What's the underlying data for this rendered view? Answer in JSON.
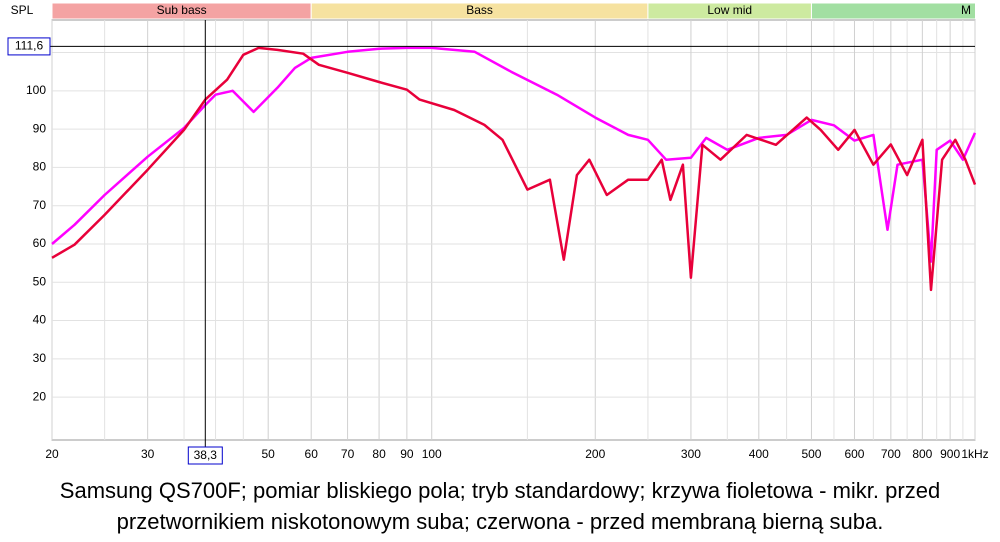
{
  "chart_data": {
    "type": "line",
    "y_label": "SPL",
    "caption": [
      "Samsung QS700F; pomiar bliskiego pola; tryb standardowy; krzywa fioletowa - mikr. przed",
      "przetwornikiem niskotonowym suba; czerwona - przed membraną bierną suba."
    ],
    "x_log": true,
    "xlim": [
      20,
      1000
    ],
    "ylim": [
      8.8,
      118.5
    ],
    "xticks": [
      20,
      30,
      50,
      60,
      70,
      80,
      90,
      100,
      200,
      300,
      400,
      500,
      600,
      700,
      800,
      900,
      {
        "value": 1000,
        "label": "1kHz"
      }
    ],
    "x_minor_grid": [
      25,
      35,
      40,
      45,
      150,
      250,
      350,
      450,
      550,
      650,
      750,
      850,
      950
    ],
    "yticks": [
      20,
      30,
      40,
      50,
      60,
      70,
      80,
      90,
      100
    ],
    "y_minor_grid": [
      110
    ],
    "grid": true,
    "bands": [
      {
        "label": "Sub bass",
        "start": 20,
        "end": 60,
        "color": "#f4a3a3"
      },
      {
        "label": "Bass",
        "start": 60,
        "end": 250,
        "color": "#f6e2a0"
      },
      {
        "label": "Low mid",
        "start": 250,
        "end": 500,
        "color": "#cdeaa0"
      },
      {
        "label": "M",
        "start": 500,
        "end": 2000,
        "color": "#a2dfa2"
      }
    ],
    "cursor_x": {
      "value": 38.3,
      "label": "38,3"
    },
    "cursor_y": {
      "value": 111.6,
      "label": "111,6"
    },
    "series": [
      {
        "name": "krzywa fioletowa",
        "color": "#ff00ff",
        "x": [
          20,
          22,
          25,
          30,
          35,
          38.3,
          40,
          43,
          47,
          52,
          56,
          60,
          70,
          80,
          90,
          100,
          120,
          140,
          170,
          200,
          230,
          250,
          270,
          300,
          320,
          350,
          400,
          450,
          500,
          550,
          600,
          650,
          690,
          720,
          800,
          830,
          850,
          900,
          950,
          1000
        ],
        "values": [
          60,
          65,
          72.8,
          82.8,
          90.3,
          96.3,
          99,
          100,
          94.5,
          100.8,
          106,
          108.6,
          110.2,
          111,
          111.2,
          111.2,
          110.2,
          105,
          99,
          93,
          88.5,
          87.2,
          82,
          82.5,
          87.7,
          84.6,
          87.7,
          88.5,
          92.4,
          91,
          87,
          88.5,
          63.7,
          80.7,
          82,
          55.4,
          84.6,
          87,
          82,
          89
        ]
      },
      {
        "name": "czerwona",
        "color": "#e8003a",
        "x": [
          20,
          22,
          25,
          30,
          35,
          38.3,
          42,
          45,
          48,
          52,
          58,
          62,
          70,
          80,
          90,
          95,
          110,
          125,
          135,
          150,
          165,
          175,
          185,
          195,
          210,
          230,
          250,
          265,
          275,
          290,
          300,
          315,
          340,
          380,
          430,
          490,
          520,
          560,
          600,
          650,
          700,
          750,
          800,
          830,
          870,
          920,
          960,
          1000
        ],
        "values": [
          56.4,
          59.8,
          67.6,
          79.4,
          89.8,
          97.7,
          102.9,
          109.4,
          111.2,
          110.7,
          109.7,
          106.8,
          104.7,
          102.3,
          100.3,
          97.7,
          95,
          91.1,
          87.2,
          74.2,
          76.8,
          55.9,
          78,
          82,
          72.8,
          76.8,
          76.8,
          82,
          71.5,
          80.7,
          51.2,
          85.9,
          82,
          88.5,
          85.9,
          93,
          89.8,
          84.6,
          89.8,
          80.7,
          86,
          78,
          87.2,
          48,
          82,
          87.2,
          82,
          75.5
        ]
      }
    ]
  }
}
